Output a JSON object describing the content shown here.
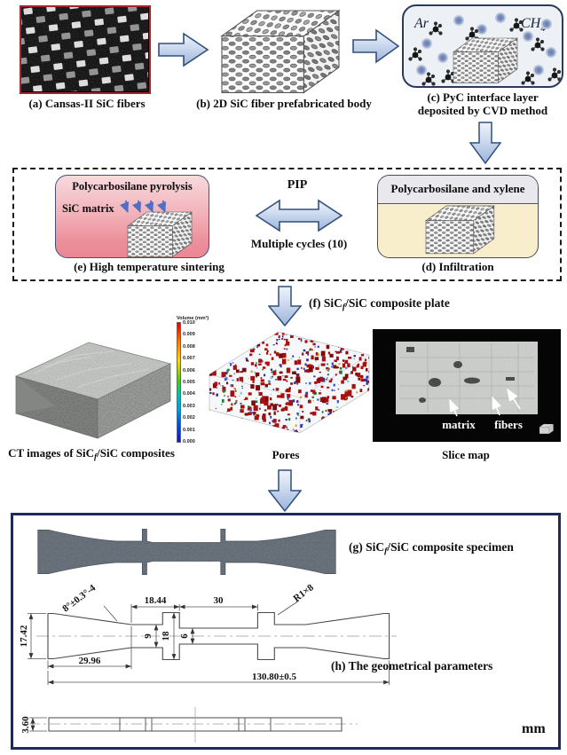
{
  "figure": {
    "panel_a": {
      "caption": "(a) Cansas-II SiC fibers"
    },
    "panel_b": {
      "caption": "(b) 2D SiC fiber prefabricated body"
    },
    "panel_c": {
      "gas_ar": "Ar",
      "gas_ch": "CH",
      "gas_ch_sub": "4",
      "caption_line1": "(c) PyC interface layer",
      "caption_line2": "deposited by CVD method"
    },
    "cycle": {
      "panel_e": {
        "title": "Polycarbosilane pyrolysis",
        "matrix_label": "SiC matrix",
        "caption": "(e) High temperature sintering"
      },
      "pip": "PIP",
      "cycles": "Multiple cycles (10)",
      "panel_d": {
        "header": "Polycarbosilane and xylene",
        "caption": "(d) Infiltration"
      }
    },
    "plate": {
      "prefix": "(f) SiC",
      "sub": "f",
      "suffix": "/SiC composite plate"
    },
    "ct": {
      "colorbar": {
        "title": "Volume (mm³)",
        "ticks": [
          "0.010",
          "0.009",
          "0.008",
          "0.007",
          "0.006",
          "0.005",
          "0.004",
          "0.003",
          "0.002",
          "0.001",
          "0.000"
        ]
      },
      "ct_caption": {
        "prefix": "CT images of SiC",
        "sub": "f",
        "suffix": "/SiC composites"
      },
      "pores_caption": "Pores",
      "slice_caption": "Slice map",
      "matrix_label": "matrix",
      "fibers_label": "fibers"
    },
    "specimen": {
      "prefix": "(g) SiC",
      "sub": "f",
      "suffix": "/SiC composite specimen"
    },
    "drawing": {
      "caption": "(h) The geometrical parameters",
      "angle": "8°±0.3°-4",
      "len_neck": "18.44",
      "len_gauge": "30",
      "radius": "R1×8",
      "grip_width": "17.42",
      "neck_width": "9",
      "tab_width": "18",
      "gauge_width": "6",
      "taper_len": "29.96",
      "total_len": "130.80±0.5",
      "thickness": "3.60",
      "unit": "mm"
    },
    "colors": {
      "arrow_fill": "#c9d7ee",
      "arrow_border": "#31507c",
      "photo_border": "#a3242e",
      "box_border": "#1d2a5a",
      "sintering_pink": "#ee96a0",
      "infiltration_yellow": "#f9eecb",
      "colorbar_top": "#d40000",
      "colorbar_bottom": "#1616ae"
    }
  }
}
